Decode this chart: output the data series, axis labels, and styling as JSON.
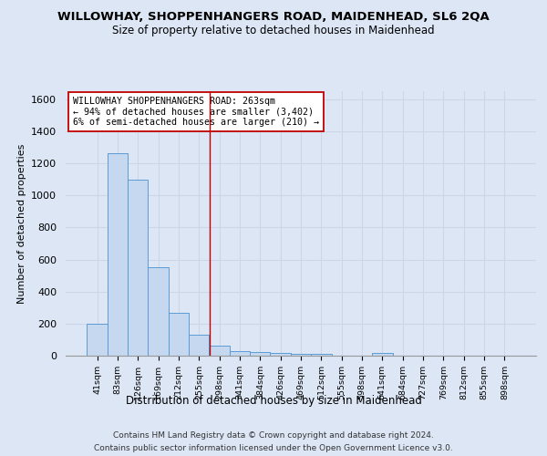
{
  "title": "WILLOWHAY, SHOPPENHANGERS ROAD, MAIDENHEAD, SL6 2QA",
  "subtitle": "Size of property relative to detached houses in Maidenhead",
  "xlabel": "Distribution of detached houses by size in Maidenhead",
  "ylabel": "Number of detached properties",
  "categories": [
    "41sqm",
    "83sqm",
    "126sqm",
    "169sqm",
    "212sqm",
    "255sqm",
    "298sqm",
    "341sqm",
    "384sqm",
    "426sqm",
    "469sqm",
    "512sqm",
    "555sqm",
    "598sqm",
    "641sqm",
    "684sqm",
    "727sqm",
    "769sqm",
    "812sqm",
    "855sqm",
    "898sqm"
  ],
  "values": [
    200,
    1265,
    1100,
    550,
    265,
    130,
    65,
    30,
    20,
    15,
    10,
    10,
    0,
    0,
    15,
    0,
    0,
    0,
    0,
    0,
    0
  ],
  "bar_color": "#c5d8ef",
  "bar_edge_color": "#5b9bd5",
  "vline_x": 5.52,
  "vline_color": "#c00000",
  "annotation_text": "WILLOWHAY SHOPPENHANGERS ROAD: 263sqm\n← 94% of detached houses are smaller (3,402)\n6% of semi-detached houses are larger (210) →",
  "annotation_box_color": "#ffffff",
  "annotation_box_edgecolor": "#c00000",
  "ylim": [
    0,
    1650
  ],
  "yticks": [
    0,
    200,
    400,
    600,
    800,
    1000,
    1200,
    1400,
    1600
  ],
  "grid_color": "#ccd6e8",
  "background_color": "#dce6f5",
  "footer1": "Contains HM Land Registry data © Crown copyright and database right 2024.",
  "footer2": "Contains public sector information licensed under the Open Government Licence v3.0."
}
